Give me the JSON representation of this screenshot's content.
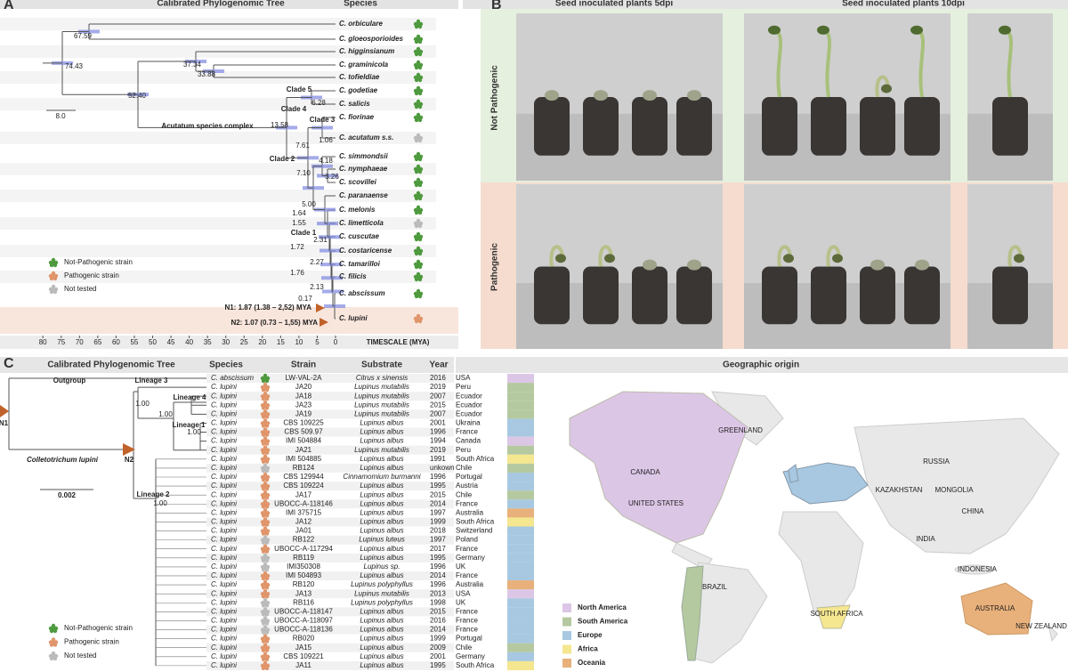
{
  "panel_a": {
    "label": "A",
    "title": "Calibrated Phylogenomic Tree",
    "species_header": "Species",
    "species": [
      "C. orbiculare",
      "C. gloeosporioides",
      "C. higginsianum",
      "C. graminicola",
      "C. tofieldiae",
      "C. godetiae",
      "C. salicis",
      "C. fiorinae",
      "C. acutatum s.s.",
      "C. simmondsii",
      "C. nymphaeae",
      "C. scovillei",
      "C. paranaense",
      "C. melonis",
      "C. limetticola",
      "C. cuscutae",
      "C. costaricense",
      "C. tamarilloi",
      "C. filicis",
      "C. abscissum",
      "C. lupini"
    ],
    "icon_colors": [
      "#4e9a3e",
      "#4e9a3e",
      "#4e9a3e",
      "#4e9a3e",
      "#4e9a3e",
      "#4e9a3e",
      "#4e9a3e",
      "#4e9a3e",
      "#bbbbbb",
      "#4e9a3e",
      "#4e9a3e",
      "#4e9a3e",
      "#4e9a3e",
      "#4e9a3e",
      "#bbbbbb",
      "#4e9a3e",
      "#4e9a3e",
      "#4e9a3e",
      "#4e9a3e",
      "#4e9a3e",
      "#e0956a"
    ],
    "node_labels": [
      "67.59",
      "74.43",
      "37.34",
      "33.88",
      "52.40",
      "8.0",
      "6.28",
      "13.58",
      "1.06",
      "7.61",
      "4.18",
      "7.10",
      "3.26",
      "5.00",
      "1.64",
      "1.55",
      "2.31",
      "1.72",
      "2.27",
      "1.76",
      "2.13",
      "0.17"
    ],
    "clade_labels": [
      "Clade 5",
      "Clade 4",
      "Clade 3",
      "Clade 2",
      "Clade 1"
    ],
    "complex_label": "Acutatum species complex",
    "n1": "N1: 1.87 (1.38 – 2,52) MYA",
    "n2": "N2: 1.07 (0.73 – 1,55) MYA",
    "timescale_ticks": [
      80,
      75,
      70,
      65,
      60,
      55,
      50,
      45,
      40,
      35,
      30,
      25,
      20,
      15,
      10,
      5,
      0
    ],
    "timescale_label": "TIMESCALE (MYA)",
    "legend": [
      {
        "label": "Not-Pathogenic strain",
        "color": "#4e9a3e"
      },
      {
        "label": "Pathogenic strain",
        "color": "#e0956a"
      },
      {
        "label": "Not tested",
        "color": "#bbbbbb"
      }
    ]
  },
  "panel_b": {
    "label": "B",
    "headers": [
      "Seed inoculated plants 5dpi",
      "Seed inoculated plants 10dpi"
    ],
    "rows": [
      "Not Pathogenic",
      "Pathogenic"
    ]
  },
  "panel_c": {
    "label": "C",
    "tree_header": "Calibrated Phylogenomic Tree",
    "columns": [
      "Species",
      "Strain",
      "Substrate",
      "Year"
    ],
    "tree_labels": [
      "Outgroup",
      "Lineage 3",
      "Lineage 4",
      "Lineage 1",
      "Lineage 2",
      "N1",
      "N2",
      "Colletotrichum lupini",
      "0.002"
    ],
    "support": [
      "1.00",
      "1.00",
      "1.00",
      "1.00"
    ],
    "rows": [
      [
        "C. abscissum",
        "LW-VAL-2A",
        "Citrus x sinensis",
        "2016",
        "USA"
      ],
      [
        "C. lupini",
        "JA20",
        "Lupinus mutabilis",
        "2019",
        "Peru"
      ],
      [
        "C. lupini",
        "JA18",
        "Lupinus mutabilis",
        "2007",
        "Ecuador"
      ],
      [
        "C. lupini",
        "JA23",
        "Lupinus mutabilis",
        "2015",
        "Ecuador"
      ],
      [
        "C. lupini",
        "JA19",
        "Lupinus mutabilis",
        "2007",
        "Ecuador"
      ],
      [
        "C. lupini",
        "CBS 109225",
        "Lupinus albus",
        "2001",
        "Ukraina"
      ],
      [
        "C. lupini",
        "CBS 509.97",
        "Lupinus albus",
        "1996",
        "France"
      ],
      [
        "C. lupini",
        "IMI 504884",
        "Lupinus albus",
        "1994",
        "Canada"
      ],
      [
        "C. lupini",
        "JA21",
        "Lupinus mutabilis",
        "2019",
        "Peru"
      ],
      [
        "C. lupini",
        "IMI 504885",
        "Lupinus albus",
        "1991",
        "South Africa"
      ],
      [
        "C. lupini",
        "RB124",
        "Lupinus albus",
        "unkown",
        "Chile"
      ],
      [
        "C. lupini",
        "CBS 129944",
        "Cinnamomium burmanni",
        "1996",
        "Portugal"
      ],
      [
        "C. lupini",
        "CBS 109224",
        "Lupinus albus",
        "1995",
        "Austria"
      ],
      [
        "C. lupini",
        "JA17",
        "Lupinus albus",
        "2015",
        "Chile"
      ],
      [
        "C. lupini",
        "UBOCC-A-118146",
        "Lupinus albus",
        "2014",
        "France"
      ],
      [
        "C. lupini",
        "IMI 375715",
        "Lupinus albus",
        "1997",
        "Australia"
      ],
      [
        "C. lupini",
        "JA12",
        "Lupinus albus",
        "1999",
        "South Africa"
      ],
      [
        "C. lupini",
        "JA01",
        "Lupinus albus",
        "2018",
        "Switzerland"
      ],
      [
        "C. lupini",
        "RB122",
        "Lupinus luteus",
        "1997",
        "Poland"
      ],
      [
        "C. lupini",
        "UBOCC-A-117294",
        "Lupinus albus",
        "2017",
        "France"
      ],
      [
        "C. lupini",
        "RB119",
        "Lupinus albus",
        "1995",
        "Germany"
      ],
      [
        "C. lupini",
        "IMI350308",
        "Lupinus sp.",
        "1996",
        "UK"
      ],
      [
        "C. lupini",
        "IMI 504893",
        "Lupinus albus",
        "2014",
        "France"
      ],
      [
        "C. lupini",
        "RB120",
        "Lupinus polyphyllus",
        "1996",
        "Australia"
      ],
      [
        "C. lupini",
        "JA13",
        "Lupinus mutabilis",
        "2013",
        "USA"
      ],
      [
        "C. lupini",
        "RB116",
        "Lupinus polyphyllus",
        "1998",
        "UK"
      ],
      [
        "C. lupini",
        "UBOCC-A-118147",
        "Lupinus albus",
        "2015",
        "France"
      ],
      [
        "C. lupini",
        "UBOCC-A-118097",
        "Lupinus albus",
        "2016",
        "France"
      ],
      [
        "C. lupini",
        "UBOCC-A-118136",
        "Lupinus albus",
        "2014",
        "France"
      ],
      [
        "C. lupini",
        "RB020",
        "Lupinus albus",
        "1999",
        "Portugal"
      ],
      [
        "C. lupini",
        "JA15",
        "Lupinus albus",
        "2009",
        "Chile"
      ],
      [
        "C. lupini",
        "CBS 109221",
        "Lupinus albus",
        "2001",
        "Germany"
      ],
      [
        "C. lupini",
        "JA11",
        "Lupinus albus",
        "1995",
        "South Africa"
      ]
    ],
    "icon_colors": [
      "#4e9a3e",
      "#e0956a",
      "#e0956a",
      "#e0956a",
      "#e0956a",
      "#e0956a",
      "#e0956a",
      "#e0956a",
      "#e0956a",
      "#e0956a",
      "#bbbbbb",
      "#e0956a",
      "#e0956a",
      "#e0956a",
      "#e0956a",
      "#e0956a",
      "#e0956a",
      "#e0956a",
      "#bbbbbb",
      "#e0956a",
      "#bbbbbb",
      "#bbbbbb",
      "#e0956a",
      "#e0956a",
      "#e0956a",
      "#bbbbbb",
      "#bbbbbb",
      "#bbbbbb",
      "#bbbbbb",
      "#e0956a",
      "#e0956a",
      "#e0956a",
      "#e0956a"
    ],
    "origin_colors": [
      "#dcc6e6",
      "#b5c9a0",
      "#b5c9a0",
      "#b5c9a0",
      "#b5c9a0",
      "#a7c8e0",
      "#a7c8e0",
      "#dcc6e6",
      "#b5c9a0",
      "#f5e690",
      "#b5c9a0",
      "#a7c8e0",
      "#a7c8e0",
      "#b5c9a0",
      "#a7c8e0",
      "#e8b07a",
      "#f5e690",
      "#a7c8e0",
      "#a7c8e0",
      "#a7c8e0",
      "#a7c8e0",
      "#a7c8e0",
      "#a7c8e0",
      "#e8b07a",
      "#dcc6e6",
      "#a7c8e0",
      "#a7c8e0",
      "#a7c8e0",
      "#a7c8e0",
      "#a7c8e0",
      "#b5c9a0",
      "#a7c8e0",
      "#f5e690"
    ],
    "legend": [
      {
        "label": "Not-Pathogenic strain",
        "color": "#4e9a3e"
      },
      {
        "label": "Pathogenic strain",
        "color": "#e0956a"
      },
      {
        "label": "Not tested",
        "color": "#bbbbbb"
      }
    ]
  },
  "map": {
    "title": "Geographic origin",
    "legend": [
      {
        "label": "North America",
        "color": "#dcc6e6"
      },
      {
        "label": "South America",
        "color": "#b5c9a0"
      },
      {
        "label": "Europe",
        "color": "#a7c8e0"
      },
      {
        "label": "Africa",
        "color": "#f5e690"
      },
      {
        "label": "Oceania",
        "color": "#e8b07a"
      }
    ],
    "labels": [
      "GREENLAND",
      "CANADA",
      "UNITED STATES",
      "RUSSIA",
      "MONGOLIA",
      "KAZAKHSTAN",
      "CHINA",
      "INDIA",
      "INDONESIA",
      "BRAZIL",
      "SOUTH AFRICA",
      "AUSTRALIA",
      "NEW ZEALAND"
    ]
  }
}
